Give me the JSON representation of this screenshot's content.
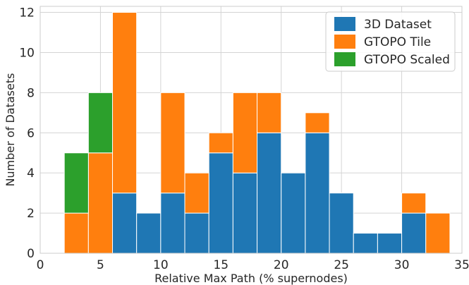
{
  "chart_data": {
    "type": "bar",
    "subtype": "stacked-histogram",
    "xlabel": "Relative Max Path (% supernodes)",
    "ylabel": "Number of Datasets",
    "xlim": [
      0,
      35
    ],
    "ylim": [
      0,
      12.3
    ],
    "xticks": [
      0,
      5,
      10,
      15,
      20,
      25,
      30,
      35
    ],
    "yticks": [
      0,
      2,
      4,
      6,
      8,
      10,
      12
    ],
    "grid": true,
    "legend_position": "top-right",
    "bin_edges": [
      2,
      4,
      6,
      8,
      10,
      12,
      14,
      16,
      18,
      20,
      22,
      24,
      26,
      28,
      30,
      32,
      34
    ],
    "series": [
      {
        "name": "3D Dataset",
        "color": "#1f77b4",
        "values": [
          0,
          0,
          3,
          2,
          3,
          2,
          5,
          4,
          6,
          4,
          6,
          3,
          1,
          1,
          2,
          0
        ]
      },
      {
        "name": "GTOPO Tile",
        "color": "#ff7f0e",
        "values": [
          2,
          5,
          9,
          0,
          5,
          2,
          1,
          4,
          2,
          0,
          1,
          0,
          0,
          0,
          1,
          2
        ]
      },
      {
        "name": "GTOPO Scaled",
        "color": "#2ca02c",
        "values": [
          3,
          3,
          0,
          0,
          0,
          0,
          0,
          0,
          0,
          0,
          0,
          0,
          0,
          0,
          0,
          0
        ]
      }
    ]
  }
}
